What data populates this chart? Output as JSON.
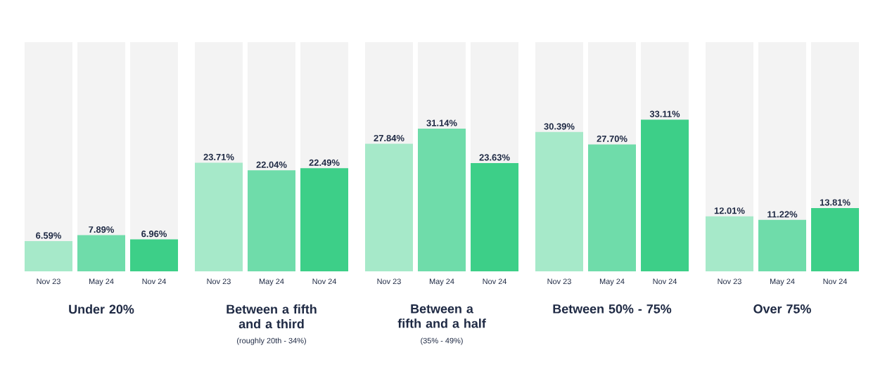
{
  "chart_data": {
    "type": "bar",
    "categories": [
      "Under 20%",
      "Between a fifth and a third",
      "Between a fifth and a half",
      "Between 50% - 75%",
      "Over 75%"
    ],
    "series": [
      {
        "name": "Nov 23",
        "color": "#a6e9c9",
        "values": [
          6.59,
          23.71,
          27.84,
          30.39,
          12.01
        ],
        "value_labels": [
          "6.59%",
          "23.71%",
          "27.84%",
          "30.39%",
          "12.01%"
        ]
      },
      {
        "name": "May 24",
        "color": "#6fdcaa",
        "values": [
          7.89,
          22.04,
          31.14,
          27.7,
          11.22
        ],
        "value_labels": [
          "7.89%",
          "22.04%",
          "31.14%",
          "27.70%",
          "11.22%"
        ]
      },
      {
        "name": "Nov 24",
        "color": "#3dcf88",
        "values": [
          6.96,
          22.49,
          23.63,
          33.11,
          13.81
        ],
        "value_labels": [
          "6.96%",
          "22.49%",
          "23.63%",
          "33.11%",
          "13.81%"
        ]
      }
    ],
    "ylim": [
      0,
      50
    ],
    "annotations": [
      "(roughly 20th - 34%)",
      "(35% - 49%)"
    ]
  }
}
